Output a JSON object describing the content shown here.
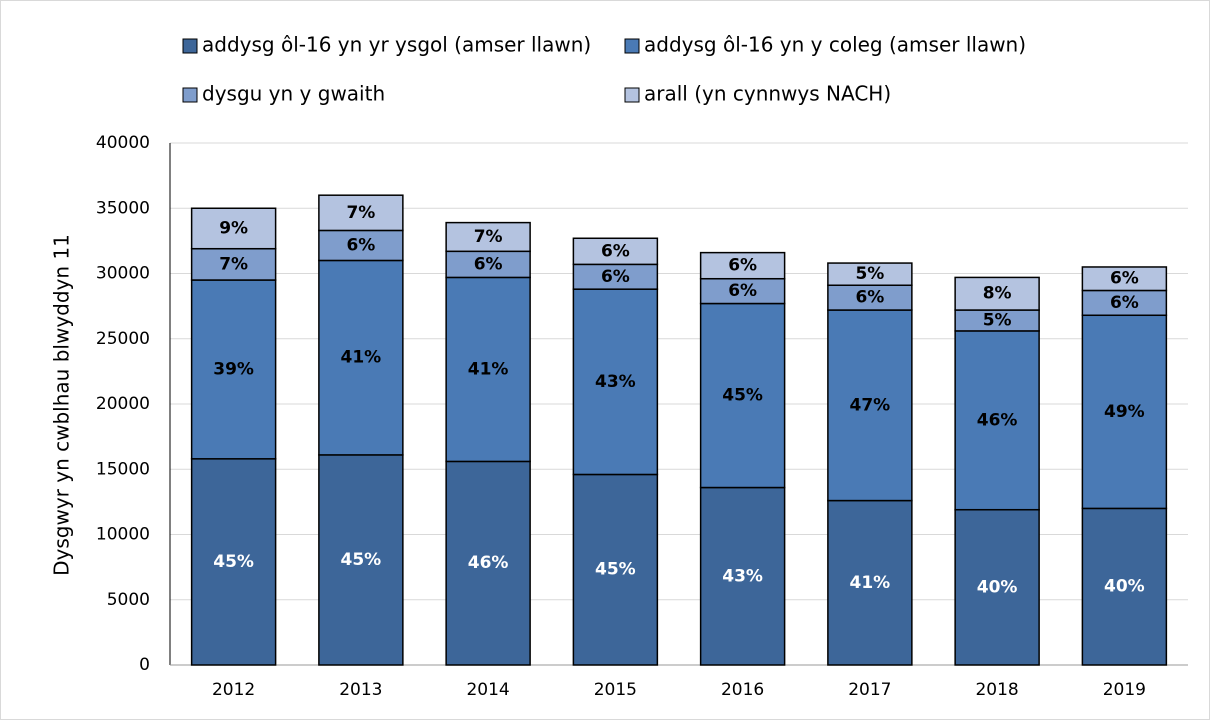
{
  "chart_data": {
    "type": "stacked_bar",
    "y_label": "Dysgwyr yn cwblhau blwyddyn 11",
    "categories": [
      "2012",
      "2013",
      "2014",
      "2015",
      "2016",
      "2017",
      "2018",
      "2019"
    ],
    "series": [
      {
        "name": "addysg ôl-16 yn yr ysgol (amser llawn)",
        "color": "#3d6699",
        "values": [
          15800,
          16100,
          15600,
          14600,
          13600,
          12600,
          11900,
          12000
        ],
        "value_labels": [
          "45%",
          "45%",
          "46%",
          "45%",
          "43%",
          "41%",
          "40%",
          "40%"
        ]
      },
      {
        "name": "addysg ôl-16 yn y coleg (amser llawn)",
        "color": "#4a7ab5",
        "values": [
          13700,
          14900,
          14100,
          14200,
          14100,
          14600,
          13700,
          14800
        ],
        "value_labels": [
          "39%",
          "41%",
          "41%",
          "43%",
          "45%",
          "47%",
          "46%",
          "49%"
        ]
      },
      {
        "name": "dysgu yn y gwaith",
        "color": "#7f9dcc",
        "values": [
          2400,
          2300,
          2000,
          1900,
          1900,
          1900,
          1600,
          1900
        ],
        "value_labels": [
          "7%",
          "6%",
          "6%",
          "6%",
          "6%",
          "6%",
          "5%",
          "6%"
        ]
      },
      {
        "name": "arall (yn cynnwys NACH)",
        "color": "#b4c3e0",
        "values": [
          3100,
          2700,
          2200,
          2000,
          2000,
          1700,
          2500,
          1800
        ],
        "value_labels": [
          "9%",
          "7%",
          "7%",
          "6%",
          "6%",
          "5%",
          "8%",
          "6%"
        ]
      }
    ],
    "ylim": [
      0,
      40000
    ],
    "yticks": [
      0,
      5000,
      10000,
      15000,
      20000,
      25000,
      30000,
      35000,
      40000
    ],
    "grid": true
  }
}
